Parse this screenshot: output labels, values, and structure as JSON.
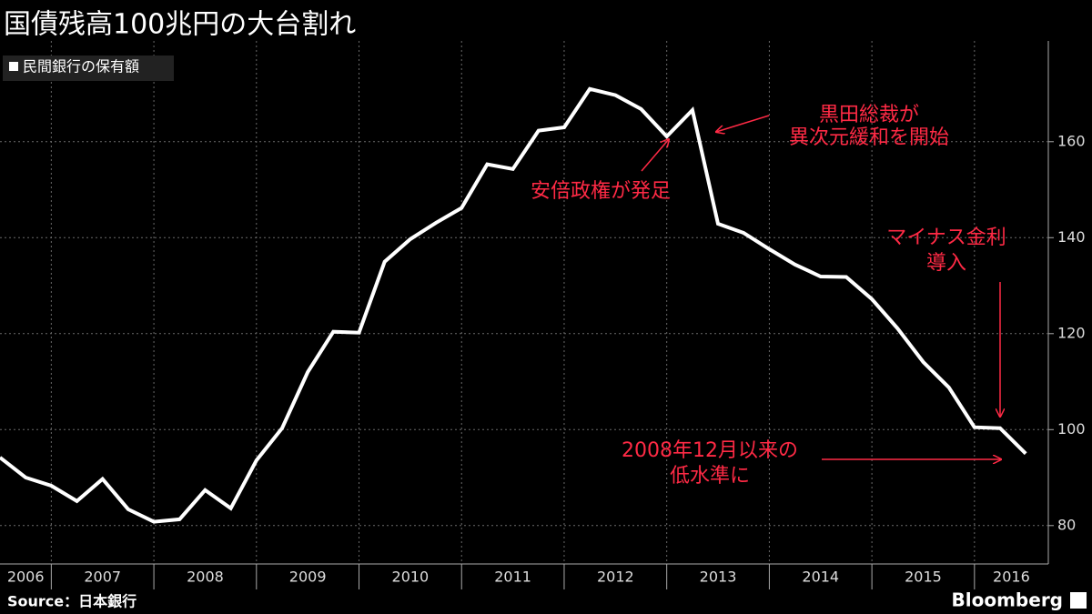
{
  "chart_data": {
    "type": "line",
    "title": "国債残高100兆円の大台割れ",
    "source": "Source：日本銀行",
    "brand": "Bloomberg",
    "x": [
      2006.5,
      2006.75,
      2007,
      2007.25,
      2007.5,
      2007.75,
      2008,
      2008.25,
      2008.5,
      2008.75,
      2009,
      2009.25,
      2009.5,
      2009.75,
      2010,
      2010.25,
      2010.5,
      2010.75,
      2011,
      2011.25,
      2011.5,
      2011.75,
      2012,
      2012.25,
      2012.5,
      2012.75,
      2013,
      2013.25,
      2013.5,
      2013.75,
      2014,
      2014.25,
      2014.5,
      2014.75,
      2015,
      2015.25,
      2015.5,
      2015.75,
      2016,
      2016.25,
      2016.5
    ],
    "series": [
      {
        "name": "民間銀行の保有額",
        "color": "#ffffff",
        "values": [
          94.2,
          90.0,
          88.3,
          85.1,
          89.7,
          83.4,
          80.8,
          81.3,
          87.4,
          83.6,
          93.6,
          100.3,
          112.0,
          120.4,
          120.2,
          135.0,
          139.7,
          143.1,
          146.2,
          155.3,
          154.3,
          162.3,
          163.0,
          171.0,
          169.7,
          166.8,
          161.1,
          166.6,
          142.9,
          141.0,
          137.6,
          134.4,
          131.9,
          131.8,
          127.2,
          121.1,
          114.1,
          108.8,
          100.5,
          100.3,
          95.0
        ]
      }
    ],
    "xlim": [
      2006.5,
      2016.72
    ],
    "xticks": [
      2006,
      2007,
      2008,
      2009,
      2010,
      2011,
      2012,
      2013,
      2014,
      2015,
      2016
    ],
    "ylim": [
      72,
      181
    ],
    "yticks": [
      80,
      100,
      120,
      140,
      160
    ],
    "grid": true,
    "legend": "top-left",
    "annotations": [
      {
        "text": [
          "黒田総裁が",
          "異次元緩和を開始"
        ]
      },
      {
        "text": [
          "安倍政権が発足"
        ]
      },
      {
        "text": [
          "マイナス金利",
          "導入"
        ]
      },
      {
        "text": [
          "2008年12月以来の",
          "低水準に"
        ]
      }
    ]
  }
}
